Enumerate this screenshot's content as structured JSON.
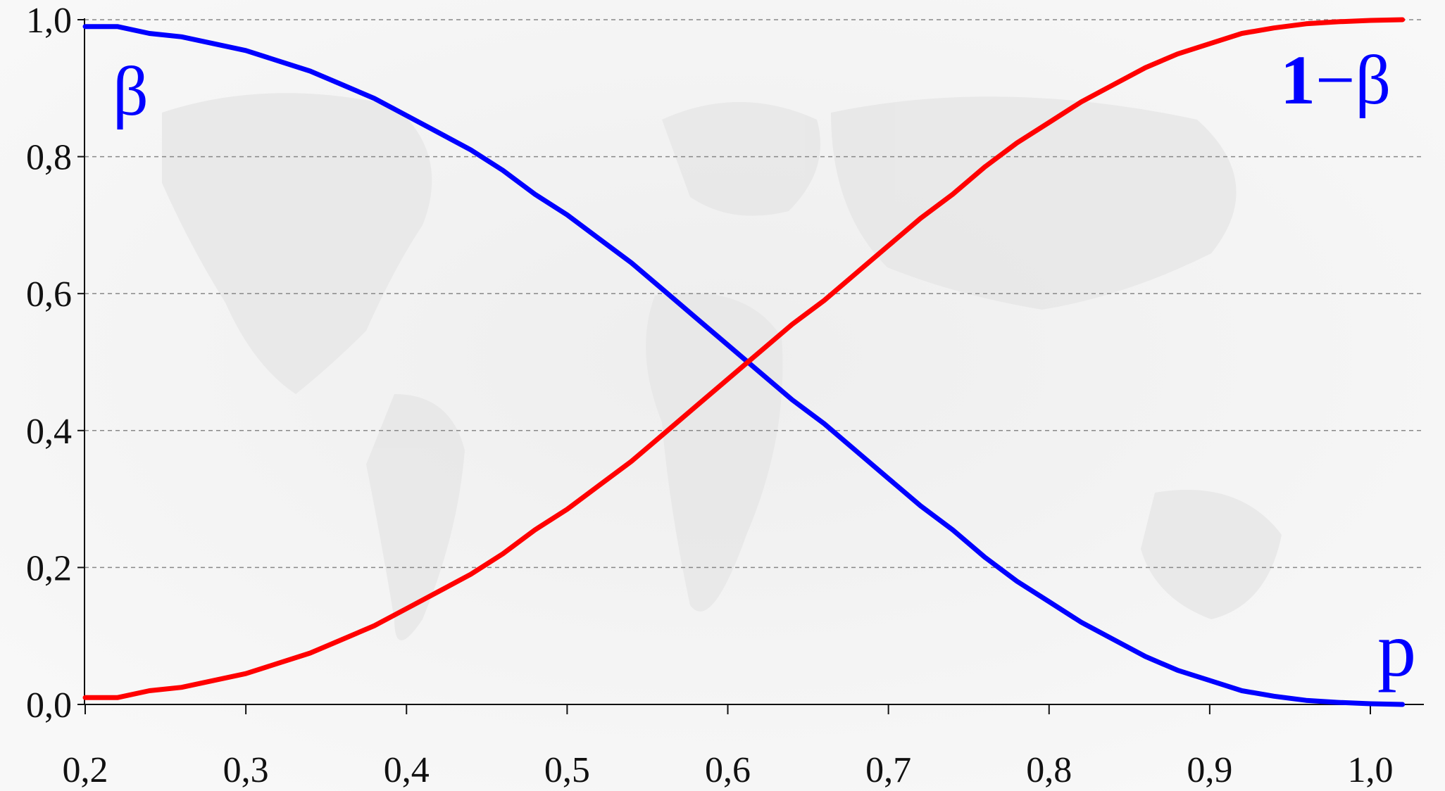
{
  "chart_data": {
    "type": "line",
    "title": "",
    "xlabel": "",
    "ylabel": "",
    "xlim": [
      0.2,
      1.0
    ],
    "ylim": [
      0.0,
      1.0
    ],
    "grid": "horizontal-dashed",
    "x_ticks": [
      "0,2",
      "0,3",
      "0,4",
      "0,5",
      "0,6",
      "0,7",
      "0,8",
      "0,9",
      "1,0"
    ],
    "y_ticks": [
      "0,0",
      "0,2",
      "0,4",
      "0,6",
      "0,8",
      "1,0"
    ],
    "annotations": {
      "beta": "β",
      "one_minus_beta_prefix": "1",
      "one_minus_beta_rest": "−β",
      "p": "p"
    },
    "colors": {
      "beta": "#0000ff",
      "one_minus_beta": "#ff0000",
      "background": "#f6f6f6"
    },
    "x": [
      0.2,
      0.22,
      0.24,
      0.26,
      0.28,
      0.3,
      0.32,
      0.34,
      0.36,
      0.38,
      0.4,
      0.42,
      0.44,
      0.46,
      0.48,
      0.5,
      0.52,
      0.54,
      0.56,
      0.58,
      0.6,
      0.62,
      0.64,
      0.66,
      0.68,
      0.7,
      0.72,
      0.74,
      0.76,
      0.78,
      0.8,
      0.82,
      0.84,
      0.86,
      0.88,
      0.9,
      0.92,
      0.94,
      0.96,
      0.98,
      1.0,
      1.02
    ],
    "series": [
      {
        "key": "beta",
        "values": [
          0.99,
          0.99,
          0.98,
          0.975,
          0.965,
          0.955,
          0.94,
          0.925,
          0.905,
          0.885,
          0.86,
          0.835,
          0.81,
          0.78,
          0.745,
          0.715,
          0.68,
          0.645,
          0.605,
          0.565,
          0.525,
          0.485,
          0.445,
          0.41,
          0.37,
          0.33,
          0.29,
          0.255,
          0.215,
          0.18,
          0.15,
          0.12,
          0.095,
          0.07,
          0.05,
          0.035,
          0.02,
          0.012,
          0.006,
          0.003,
          0.001,
          0.0
        ]
      },
      {
        "key": "one_minus_beta",
        "values": [
          0.01,
          0.01,
          0.02,
          0.025,
          0.035,
          0.045,
          0.06,
          0.075,
          0.095,
          0.115,
          0.14,
          0.165,
          0.19,
          0.22,
          0.255,
          0.285,
          0.32,
          0.355,
          0.395,
          0.435,
          0.475,
          0.515,
          0.555,
          0.59,
          0.63,
          0.67,
          0.71,
          0.745,
          0.785,
          0.82,
          0.85,
          0.88,
          0.905,
          0.93,
          0.95,
          0.965,
          0.98,
          0.988,
          0.994,
          0.997,
          0.999,
          1.0
        ]
      }
    ]
  }
}
